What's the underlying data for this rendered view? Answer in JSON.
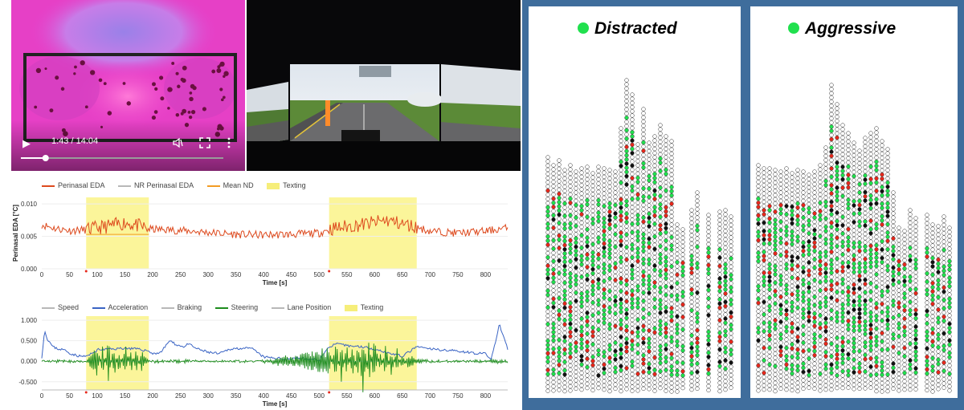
{
  "video_player": {
    "time": "1:43 / 14:04",
    "progress": 0.122,
    "play_icon": "play-icon",
    "volume_icon": "volume-icon",
    "fullscreen_icon": "fullscreen-icon",
    "menu_icon": "more-vert-icon"
  },
  "colors": {
    "eda": "#dd4a1e",
    "nr_eda": "#b8b8b8",
    "mean_nd": "#f39c24",
    "texting": "#fbf5a0",
    "speed": "#b8b8b8",
    "acceleration": "#3a64c4",
    "braking": "#b8b8b8",
    "steering": "#1d8c1d",
    "lane": "#b8b8b8",
    "panel_frame": "#3f6d9c",
    "marker_green": "#21e04e",
    "marker_red": "#e6281c",
    "marker_black": "#111111"
  },
  "chart_data": [
    {
      "type": "line",
      "legend": [
        "Perinasal EDA",
        "NR Perinasal EDA",
        "Mean ND",
        "Texting"
      ],
      "ylabel": "Perinasal EDA [°C]",
      "xlabel": "Time [s]",
      "xlim": [
        0,
        840
      ],
      "ylim": [
        0,
        0.011
      ],
      "x_ticks": [
        0,
        50,
        100,
        150,
        200,
        250,
        300,
        350,
        400,
        450,
        500,
        550,
        600,
        650,
        700,
        750,
        800
      ],
      "y_ticks": [
        "0.000",
        "0.005",
        "0.010"
      ],
      "y_tick_values": [
        0,
        0.005,
        0.01
      ],
      "texting_intervals": [
        [
          80,
          193
        ],
        [
          518,
          676
        ]
      ],
      "event_markers": [
        80,
        518
      ],
      "mean_nd": 0.0053,
      "series": [
        {
          "name": "Perinasal EDA",
          "x": [
            0,
            25,
            50,
            80,
            100,
            130,
            150,
            175,
            193,
            230,
            270,
            300,
            350,
            400,
            450,
            500,
            518,
            550,
            600,
            620,
            650,
            676,
            700,
            750,
            800,
            840
          ],
          "values": [
            0.0068,
            0.0062,
            0.0059,
            0.006,
            0.0063,
            0.0067,
            0.0071,
            0.0066,
            0.0061,
            0.006,
            0.0058,
            0.0056,
            0.0053,
            0.0052,
            0.0053,
            0.0055,
            0.0061,
            0.0065,
            0.0071,
            0.0075,
            0.0069,
            0.0064,
            0.0058,
            0.0055,
            0.0058,
            0.0063
          ]
        }
      ]
    },
    {
      "type": "line",
      "legend": [
        "Speed",
        "Acceleration",
        "Braking",
        "Steering",
        "Lane Position",
        "Texting"
      ],
      "xlabel": "Time [s]",
      "xlim": [
        0,
        840
      ],
      "ylim": [
        -0.7,
        1.1
      ],
      "x_ticks": [
        0,
        50,
        100,
        150,
        200,
        250,
        300,
        350,
        400,
        450,
        500,
        550,
        600,
        650,
        700,
        750,
        800
      ],
      "y_ticks": [
        "1.000",
        "0.500",
        "0.000",
        "-0.500"
      ],
      "y_tick_values": [
        1,
        0.5,
        0,
        -0.5
      ],
      "texting_intervals": [
        [
          80,
          193
        ],
        [
          518,
          676
        ]
      ],
      "event_markers": [
        80,
        518
      ],
      "series": [
        {
          "name": "Acceleration",
          "x": [
            0,
            5,
            10,
            20,
            30,
            40,
            50,
            60,
            70,
            80,
            90,
            100,
            130,
            150,
            170,
            193,
            200,
            215,
            230,
            240,
            255,
            265,
            280,
            300,
            320,
            340,
            360,
            380,
            400,
            420,
            440,
            460,
            480,
            500,
            518,
            530,
            550,
            580,
            600,
            620,
            650,
            676,
            700,
            720,
            750,
            780,
            800,
            810,
            815,
            820,
            825,
            830,
            840
          ],
          "values": [
            0.1,
            0.75,
            0.55,
            0.35,
            0.3,
            0.28,
            0.2,
            0.15,
            0.12,
            0.12,
            0.18,
            0.28,
            0.3,
            0.32,
            0.3,
            0.25,
            0.18,
            0.22,
            0.5,
            0.42,
            0.35,
            0.42,
            0.3,
            0.22,
            0.18,
            0.3,
            0.32,
            0.3,
            0.1,
            0.08,
            0.05,
            0.08,
            0.05,
            0.03,
            0.35,
            0.42,
            0.38,
            0.35,
            0.3,
            0.22,
            0.12,
            0.35,
            0.3,
            0.28,
            0.25,
            0.2,
            0.18,
            0.05,
            0.3,
            0.6,
            0.9,
            0.7,
            0.3
          ]
        },
        {
          "name": "Steering",
          "x": [
            0,
            40,
            80,
            100,
            110,
            120,
            130,
            140,
            150,
            160,
            170,
            180,
            193,
            250,
            300,
            400,
            518,
            530,
            540,
            550,
            560,
            570,
            580,
            590,
            600,
            610,
            620,
            630,
            640,
            650,
            660,
            676,
            700,
            750,
            800,
            840
          ],
          "values": [
            0.0,
            0.02,
            0.0,
            0.45,
            -0.45,
            0.55,
            -0.5,
            0.4,
            -0.55,
            0.35,
            -0.3,
            0.25,
            0.02,
            0.03,
            0.0,
            0.02,
            0.35,
            -0.6,
            0.5,
            -0.45,
            0.6,
            -0.5,
            0.95,
            -0.55,
            0.7,
            -0.4,
            0.5,
            -0.45,
            0.35,
            -0.3,
            0.25,
            0.05,
            0.02,
            0.0,
            0.03,
            0.05
          ]
        }
      ]
    }
  ],
  "panels": [
    {
      "title": "Distracted",
      "indicator_color": "#21e04e"
    },
    {
      "title": "Aggressive",
      "indicator_color": "#21e04e"
    }
  ]
}
